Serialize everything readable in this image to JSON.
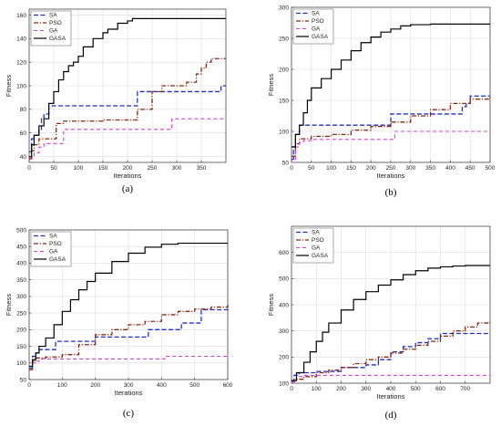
{
  "colors": {
    "SA": "#1f2fc8",
    "PSO": "#8b2a12",
    "GA": "#d63fd6",
    "GASA": "#000000"
  },
  "chart_data": [
    {
      "type": "line",
      "caption": "(a)",
      "xlabel": "Iterations",
      "ylabel": "Fitness",
      "xlim": [
        0,
        400
      ],
      "ylim": [
        35,
        165
      ],
      "xticks": [
        0,
        50,
        100,
        150,
        200,
        250,
        300,
        350
      ],
      "yticks": [
        40,
        60,
        80,
        100,
        120,
        140,
        160
      ],
      "grid": true,
      "legend_position": "top-left",
      "series": [
        {
          "name": "SA",
          "x": [
            0,
            5,
            10,
            20,
            25,
            30,
            40,
            100,
            150,
            210,
            220,
            300,
            340,
            350,
            380,
            390,
            400
          ],
          "y": [
            44,
            55,
            58,
            63,
            72,
            76,
            83,
            83,
            83,
            83,
            95,
            95,
            95,
            95,
            95,
            100,
            100
          ]
        },
        {
          "name": "PSO",
          "x": [
            0,
            5,
            10,
            20,
            40,
            55,
            70,
            90,
            150,
            200,
            220,
            250,
            270,
            300,
            320,
            340,
            350,
            360,
            370,
            400
          ],
          "y": [
            38,
            45,
            50,
            55,
            55,
            68,
            70,
            70,
            71,
            71,
            80,
            95,
            100,
            100,
            103,
            110,
            115,
            120,
            123,
            123
          ]
        },
        {
          "name": "GA",
          "x": [
            0,
            10,
            20,
            30,
            60,
            70,
            110,
            150,
            200,
            280,
            290,
            300,
            400
          ],
          "y": [
            39,
            43,
            48,
            51,
            51,
            63,
            63,
            63,
            63,
            63,
            72,
            72,
            72
          ]
        },
        {
          "name": "GASA",
          "x": [
            0,
            5,
            10,
            20,
            30,
            40,
            50,
            60,
            70,
            80,
            90,
            100,
            110,
            130,
            150,
            160,
            180,
            200,
            210,
            220,
            260,
            300,
            350,
            400
          ],
          "y": [
            40,
            50,
            58,
            66,
            72,
            85,
            95,
            105,
            112,
            117,
            120,
            125,
            133,
            140,
            145,
            148,
            153,
            155,
            157,
            157,
            157,
            157,
            157,
            157
          ]
        }
      ]
    },
    {
      "type": "line",
      "caption": "(b)",
      "xlabel": "Iterations",
      "ylabel": "Fitness",
      "xlim": [
        0,
        500
      ],
      "ylim": [
        50,
        300
      ],
      "xticks": [
        0,
        50,
        100,
        150,
        200,
        250,
        300,
        350,
        400,
        450,
        500
      ],
      "yticks": [
        50,
        100,
        150,
        200,
        250,
        300
      ],
      "grid": true,
      "legend_position": "top-left",
      "series": [
        {
          "name": "SA",
          "x": [
            0,
            5,
            10,
            20,
            50,
            100,
            150,
            200,
            240,
            250,
            350,
            400,
            430,
            440,
            450,
            500
          ],
          "y": [
            55,
            75,
            95,
            110,
            110,
            110,
            110,
            110,
            110,
            128,
            128,
            128,
            140,
            145,
            157,
            157
          ]
        },
        {
          "name": "PSO",
          "x": [
            0,
            10,
            20,
            50,
            100,
            150,
            200,
            250,
            300,
            350,
            400,
            450,
            500
          ],
          "y": [
            60,
            80,
            88,
            92,
            95,
            102,
            108,
            115,
            125,
            135,
            145,
            152,
            155
          ]
        },
        {
          "name": "GA",
          "x": [
            0,
            10,
            20,
            30,
            50,
            100,
            150,
            200,
            250,
            260,
            300,
            400,
            500
          ],
          "y": [
            50,
            75,
            82,
            85,
            87,
            87,
            87,
            87,
            87,
            100,
            100,
            100,
            100
          ]
        },
        {
          "name": "GASA",
          "x": [
            0,
            10,
            20,
            30,
            40,
            50,
            75,
            100,
            125,
            150,
            175,
            200,
            225,
            250,
            275,
            300,
            350,
            400,
            450,
            500
          ],
          "y": [
            75,
            95,
            110,
            130,
            150,
            170,
            185,
            200,
            215,
            230,
            243,
            252,
            260,
            265,
            270,
            272,
            273,
            273,
            273,
            273
          ]
        }
      ]
    },
    {
      "type": "line",
      "caption": "(c)",
      "xlabel": "Iterations",
      "ylabel": "Fitness",
      "xlim": [
        0,
        600
      ],
      "ylim": [
        50,
        500
      ],
      "xticks": [
        0,
        100,
        200,
        300,
        400,
        500,
        600
      ],
      "yticks": [
        50,
        100,
        150,
        200,
        250,
        300,
        350,
        400,
        450,
        500
      ],
      "grid": true,
      "legend_position": "top-left",
      "series": [
        {
          "name": "SA",
          "x": [
            0,
            10,
            20,
            30,
            60,
            80,
            150,
            200,
            250,
            350,
            360,
            400,
            450,
            460,
            500,
            520,
            600
          ],
          "y": [
            85,
            120,
            130,
            140,
            140,
            165,
            165,
            178,
            178,
            178,
            200,
            200,
            200,
            220,
            220,
            260,
            275
          ]
        },
        {
          "name": "PSO",
          "x": [
            0,
            10,
            20,
            50,
            100,
            150,
            200,
            250,
            300,
            350,
            400,
            450,
            500,
            550,
            600
          ],
          "y": [
            80,
            105,
            115,
            118,
            125,
            155,
            185,
            200,
            215,
            225,
            245,
            255,
            262,
            268,
            270
          ]
        },
        {
          "name": "GA",
          "x": [
            0,
            10,
            20,
            30,
            100,
            200,
            300,
            400,
            410,
            500,
            550,
            600
          ],
          "y": [
            90,
            100,
            105,
            112,
            112,
            112,
            112,
            112,
            120,
            120,
            120,
            122
          ]
        },
        {
          "name": "GASA",
          "x": [
            0,
            10,
            20,
            30,
            50,
            75,
            100,
            125,
            150,
            175,
            200,
            250,
            300,
            350,
            400,
            450,
            500,
            550,
            600
          ],
          "y": [
            90,
            110,
            130,
            150,
            175,
            215,
            255,
            290,
            320,
            345,
            370,
            405,
            430,
            448,
            457,
            460,
            460,
            460,
            460
          ]
        }
      ]
    },
    {
      "type": "line",
      "caption": "(d)",
      "xlabel": "Iterations",
      "ylabel": "Fitness",
      "xlim": [
        0,
        800
      ],
      "ylim": [
        100,
        700
      ],
      "xticks": [
        0,
        100,
        200,
        300,
        400,
        500,
        600,
        700
      ],
      "yticks": [
        100,
        200,
        300,
        400,
        500,
        600
      ],
      "grid": true,
      "legend_position": "top-left",
      "series": [
        {
          "name": "SA",
          "x": [
            0,
            10,
            30,
            100,
            200,
            300,
            350,
            400,
            450,
            500,
            550,
            600,
            650,
            700,
            800
          ],
          "y": [
            110,
            130,
            140,
            145,
            160,
            170,
            190,
            220,
            240,
            255,
            270,
            290,
            290,
            290,
            290
          ]
        },
        {
          "name": "PSO",
          "x": [
            0,
            20,
            50,
            100,
            150,
            200,
            250,
            300,
            350,
            400,
            450,
            500,
            550,
            600,
            650,
            700,
            750,
            800
          ],
          "y": [
            110,
            115,
            125,
            140,
            150,
            160,
            175,
            190,
            200,
            215,
            230,
            245,
            260,
            280,
            300,
            315,
            330,
            338
          ]
        },
        {
          "name": "GA",
          "x": [
            0,
            20,
            50,
            100,
            200,
            300,
            400,
            500,
            600,
            700,
            790,
            800
          ],
          "y": [
            105,
            125,
            130,
            130,
            130,
            130,
            130,
            130,
            130,
            130,
            130,
            150
          ]
        },
        {
          "name": "GASA",
          "x": [
            0,
            20,
            50,
            75,
            100,
            125,
            150,
            200,
            250,
            300,
            350,
            400,
            450,
            500,
            550,
            600,
            650,
            700,
            800
          ],
          "y": [
            110,
            140,
            180,
            220,
            260,
            295,
            330,
            380,
            420,
            450,
            475,
            495,
            515,
            530,
            540,
            545,
            548,
            550,
            550
          ]
        }
      ]
    }
  ]
}
